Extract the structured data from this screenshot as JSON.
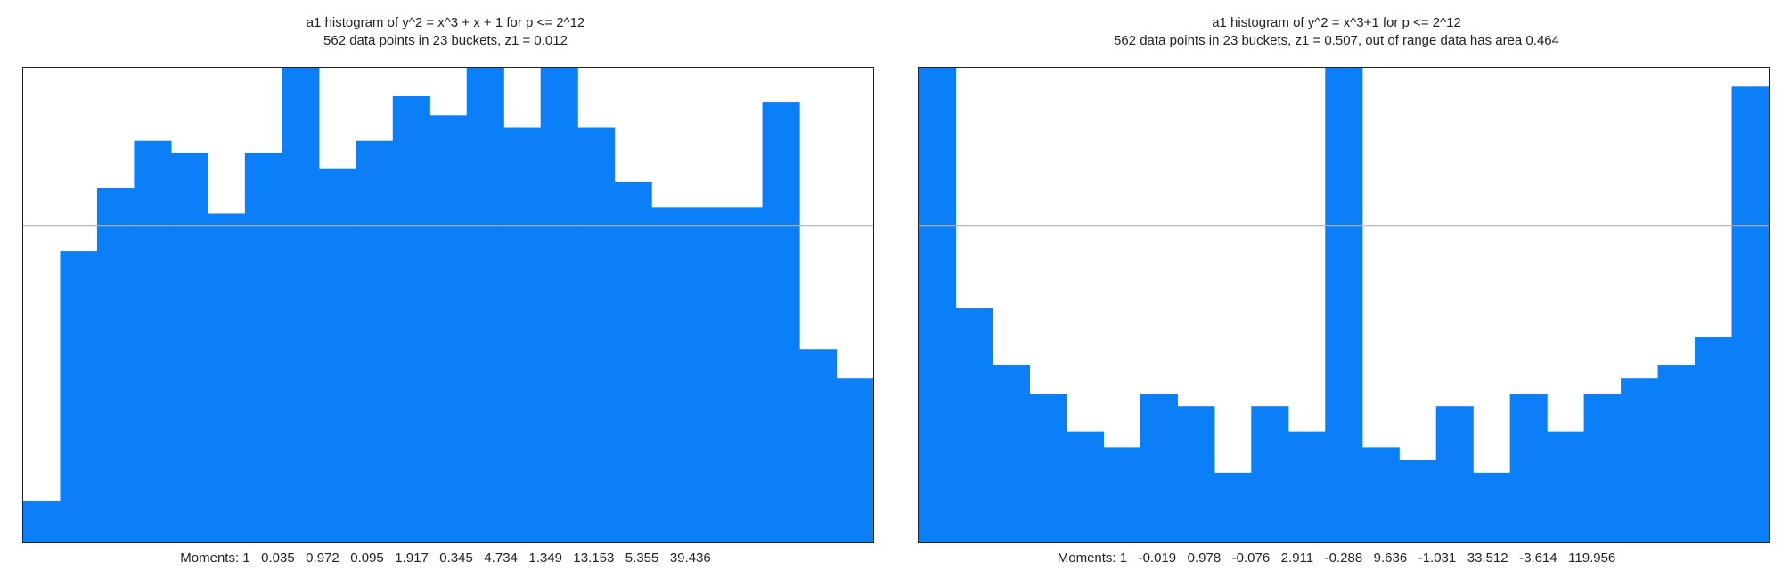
{
  "bar_color": "#0a7ff7",
  "reference_line_color": "#b0b0b0",
  "chart_data": [
    {
      "type": "bar",
      "title": "a1 histogram of y^2 = x^3 + x + 1 for p <= 2^12",
      "subtitle": "562 data points in 23 buckets, z1 = 0.012",
      "moments_text": "Moments: 1   0.035   0.972   0.095   1.917   0.345   4.734   1.349   13.153   5.355   39.436",
      "bucket_count": 23,
      "ylim": [
        0,
        1.5
      ],
      "reference_line": 1.0,
      "values": [
        0.13,
        0.92,
        1.12,
        1.27,
        1.23,
        1.04,
        1.23,
        1.52,
        1.18,
        1.27,
        1.41,
        1.35,
        1.52,
        1.31,
        1.52,
        1.31,
        1.14,
        1.06,
        1.06,
        1.06,
        1.39,
        0.61,
        0.52
      ]
    },
    {
      "type": "bar",
      "title": "a1 histogram of y^2 = x^3+1 for p <= 2^12",
      "subtitle": "562 data points in 23 buckets, z1 = 0.507, out of range data has area 0.464",
      "moments_text": "Moments: 1   -0.019   0.978   -0.076   2.911   -0.288   9.636   -1.031   33.512   -3.614   119.956",
      "bucket_count": 23,
      "ylim": [
        0,
        1.5
      ],
      "reference_line": 1.0,
      "values": [
        1.52,
        0.74,
        0.56,
        0.47,
        0.35,
        0.3,
        0.47,
        0.43,
        0.22,
        0.43,
        0.35,
        1.52,
        0.3,
        0.26,
        0.43,
        0.22,
        0.47,
        0.35,
        0.47,
        0.52,
        0.56,
        0.65,
        1.44
      ]
    }
  ]
}
